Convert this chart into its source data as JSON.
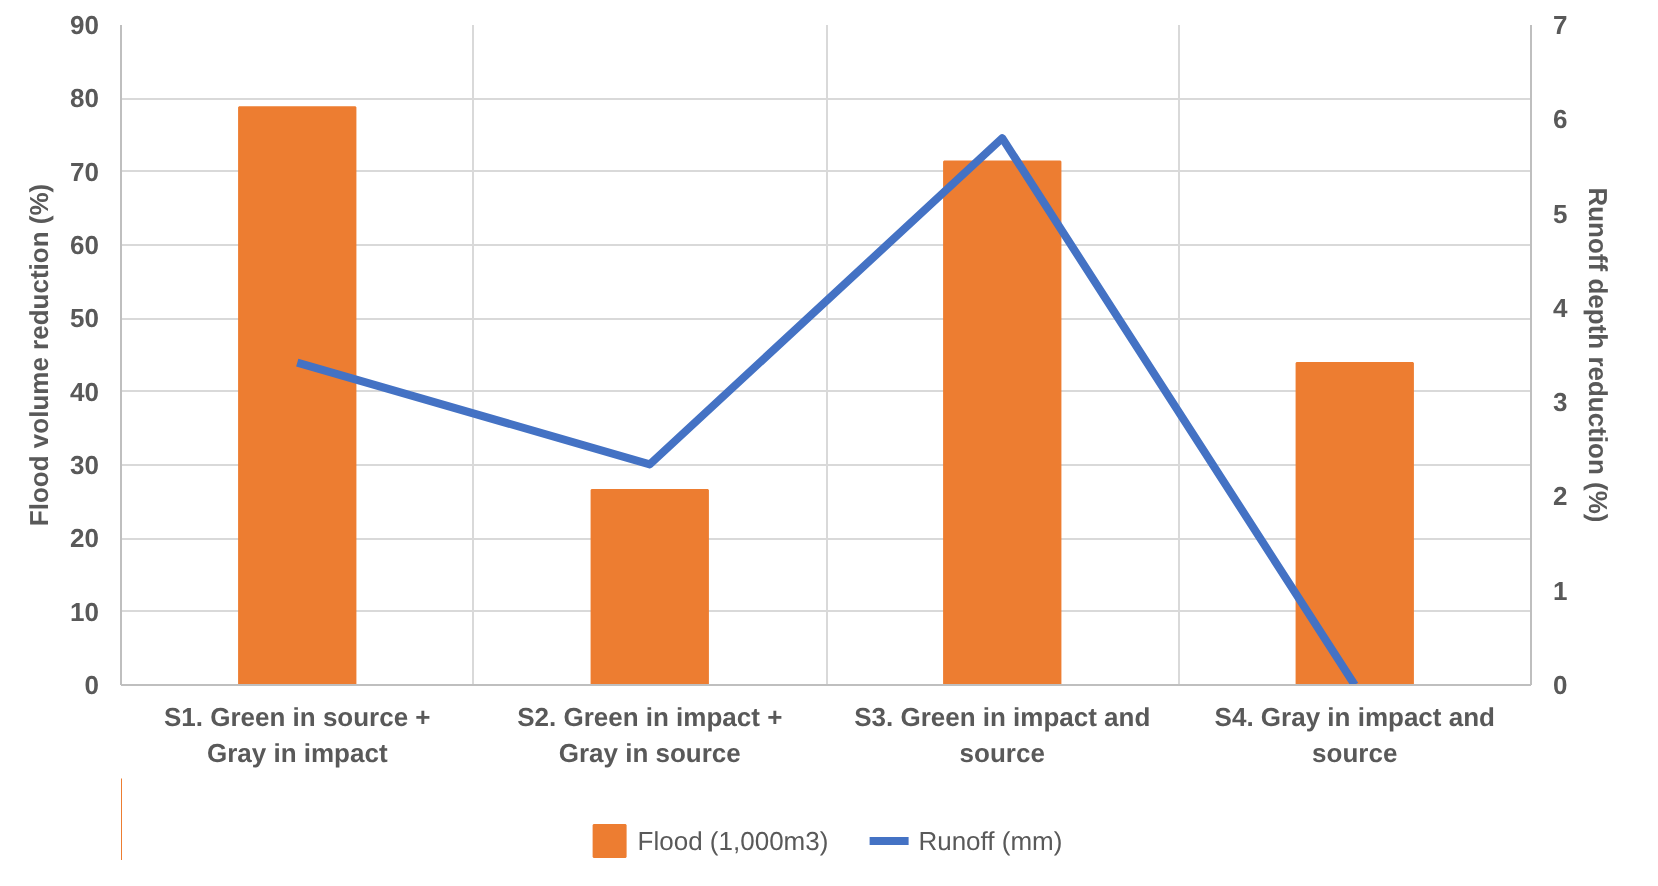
{
  "chart_data": {
    "type": "bar",
    "categories": [
      "S1. Green in source + Gray in impact",
      "S2. Green in impact + Gray in source",
      "S3. Green in impact and source",
      "S4. Gray in impact and source"
    ],
    "series": [
      {
        "name": "Flood (1,000m3)",
        "color": "#ed7d31",
        "values": [
          78.8,
          26.6,
          71.4,
          43.9
        ]
      },
      {
        "name": "Runoff (mm)",
        "type": "line",
        "axis": "y2",
        "color": "#4472c4",
        "values": [
          3.42,
          2.34,
          5.8,
          0
        ]
      }
    ],
    "ylabel": "Flood volume reduction (%)",
    "y2label": "Runoff depth reduction (%)",
    "ylim": [
      0,
      90
    ],
    "yticks": [
      0,
      10,
      20,
      30,
      40,
      50,
      60,
      70,
      80,
      90
    ],
    "y2lim": [
      0,
      7
    ],
    "y2ticks": [
      0,
      1,
      2,
      3,
      4,
      5,
      6,
      7
    ],
    "grid": true,
    "legend": "bottom"
  }
}
